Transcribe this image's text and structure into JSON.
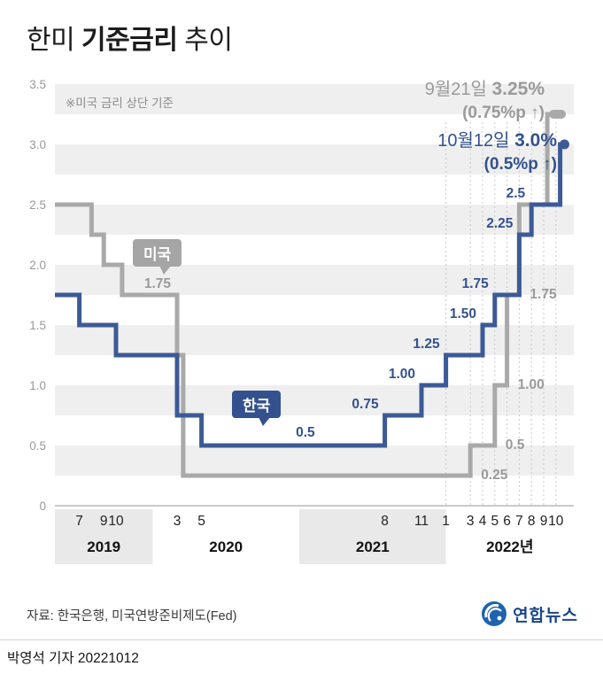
{
  "title": {
    "pre": "한미 ",
    "bold": "기준금리",
    "post": " 추이"
  },
  "note": "※미국 금리 상단 기준",
  "annotation_us": {
    "date": "9월21일 ",
    "value": "3.25%",
    "change": "(0.75%p ↑)"
  },
  "annotation_kr": {
    "date": "10월12일 ",
    "value": "3.0%",
    "change": "(0.5%p ↑)"
  },
  "series_labels": {
    "us": "미국",
    "kr": "한국"
  },
  "colors": {
    "kr_line": "#3c5a96",
    "us_line": "#a9a9a9",
    "kr_label": "#33518e",
    "us_label": "#9a9a9a",
    "stripe": "#efefef",
    "year_band": "#e9e9e9",
    "axis": "#aaaaaa",
    "tick": "#999999",
    "dash": "#c9c9c9",
    "month_label": "#222222",
    "year_label": "#111111"
  },
  "chart_data": {
    "type": "line",
    "title": "한미 기준금리 추이",
    "note": "※미국 금리 상단 기준",
    "xlabel": "",
    "ylabel": "",
    "ylim": [
      0,
      3.5
    ],
    "grid": "horizontal-stripes",
    "y_ticks": [
      [
        "3.5",
        3.5
      ],
      [
        "3.0",
        3.0
      ],
      [
        "2.5",
        2.5
      ],
      [
        "2.0",
        2.0
      ],
      [
        "1.5",
        1.5
      ],
      [
        "1.0",
        1.0
      ],
      [
        "0.5",
        0.5
      ],
      [
        "0",
        0
      ]
    ],
    "x_groups": [
      {
        "label": "2019",
        "y": 2019,
        "months": [
          7,
          9,
          10
        ],
        "band": true,
        "dash": false
      },
      {
        "label": "2020",
        "y": 2020,
        "months": [
          3,
          5
        ],
        "band": false,
        "dash": false
      },
      {
        "label": "2021",
        "y": 2021,
        "months": [
          8,
          11
        ],
        "band": true,
        "dash": false
      },
      {
        "label": "2022년",
        "y": 2022,
        "months": [
          1,
          3,
          4,
          5,
          6,
          7,
          8,
          9,
          10
        ],
        "band": false,
        "dash": true
      }
    ],
    "series": [
      {
        "name": "미국",
        "key": "us",
        "end_marker": "cap",
        "points": [
          [
            2019,
            5,
            2.5
          ],
          [
            2019,
            8,
            2.25
          ],
          [
            2019,
            9,
            2.0
          ],
          [
            2019,
            10.5,
            1.75
          ],
          [
            2020,
            3,
            1.25
          ],
          [
            2020,
            3.5,
            0.25
          ],
          [
            2022,
            3,
            0.5
          ],
          [
            2022,
            5,
            1.0
          ],
          [
            2022,
            6,
            1.75
          ],
          [
            2022,
            7,
            2.5
          ],
          [
            2022,
            9.3,
            3.25
          ],
          [
            2022,
            10.45,
            3.25
          ]
        ]
      },
      {
        "name": "한국",
        "key": "kr",
        "end_marker": "dot",
        "points": [
          [
            2019,
            5,
            1.75
          ],
          [
            2019,
            7,
            1.5
          ],
          [
            2019,
            10,
            1.25
          ],
          [
            2020,
            3,
            0.75
          ],
          [
            2020,
            5,
            0.5
          ],
          [
            2021,
            8,
            0.75
          ],
          [
            2021,
            11,
            1.0
          ],
          [
            2022,
            1,
            1.25
          ],
          [
            2022,
            4,
            1.5
          ],
          [
            2022,
            5,
            1.75
          ],
          [
            2022,
            7,
            2.25
          ],
          [
            2022,
            8,
            2.5
          ],
          [
            2022,
            10.35,
            3.0
          ],
          [
            2022,
            10.7,
            3.0
          ]
        ]
      }
    ],
    "value_labels": [
      {
        "text": "1.75",
        "series": "us",
        "at": [
          2020,
          3
        ],
        "v": 1.75,
        "side": "left"
      },
      {
        "text": "0.5",
        "series": "kr",
        "at": [
          2021,
          1.5
        ],
        "v": 0.5,
        "side": "above"
      },
      {
        "text": "0.75",
        "series": "kr",
        "at": [
          2021,
          8
        ],
        "v": 0.75,
        "side": "left"
      },
      {
        "text": "1.00",
        "series": "kr",
        "at": [
          2021,
          11
        ],
        "v": 1.0,
        "side": "left"
      },
      {
        "text": "1.25",
        "series": "kr",
        "at": [
          2022,
          1
        ],
        "v": 1.25,
        "side": "left"
      },
      {
        "text": "1.50",
        "series": "kr",
        "at": [
          2022,
          4
        ],
        "v": 1.5,
        "side": "left"
      },
      {
        "text": "1.75",
        "series": "kr",
        "at": [
          2022,
          5
        ],
        "v": 1.75,
        "side": "left"
      },
      {
        "text": "2.25",
        "series": "kr",
        "at": [
          2022,
          7
        ],
        "v": 2.25,
        "side": "left"
      },
      {
        "text": "2.5",
        "series": "kr",
        "at": [
          2022,
          8
        ],
        "v": 2.5,
        "side": "left"
      },
      {
        "text": "0.25",
        "series": "us",
        "at": [
          2022,
          3
        ],
        "v": 0.25,
        "side": "right"
      },
      {
        "text": "0.5",
        "series": "us",
        "at": [
          2022,
          5
        ],
        "v": 0.5,
        "side": "right"
      },
      {
        "text": "1.00",
        "series": "us",
        "at": [
          2022,
          6
        ],
        "v": 1.0,
        "side": "right"
      },
      {
        "text": "1.75",
        "series": "us",
        "at": [
          2022,
          7
        ],
        "v": 1.75,
        "side": "right"
      }
    ]
  },
  "footer": {
    "source": "자료: 한국은행, 미국연방준비제도(Fed)",
    "logo_text": "연합뉴스",
    "byline": "박영석 기자 20221012"
  }
}
